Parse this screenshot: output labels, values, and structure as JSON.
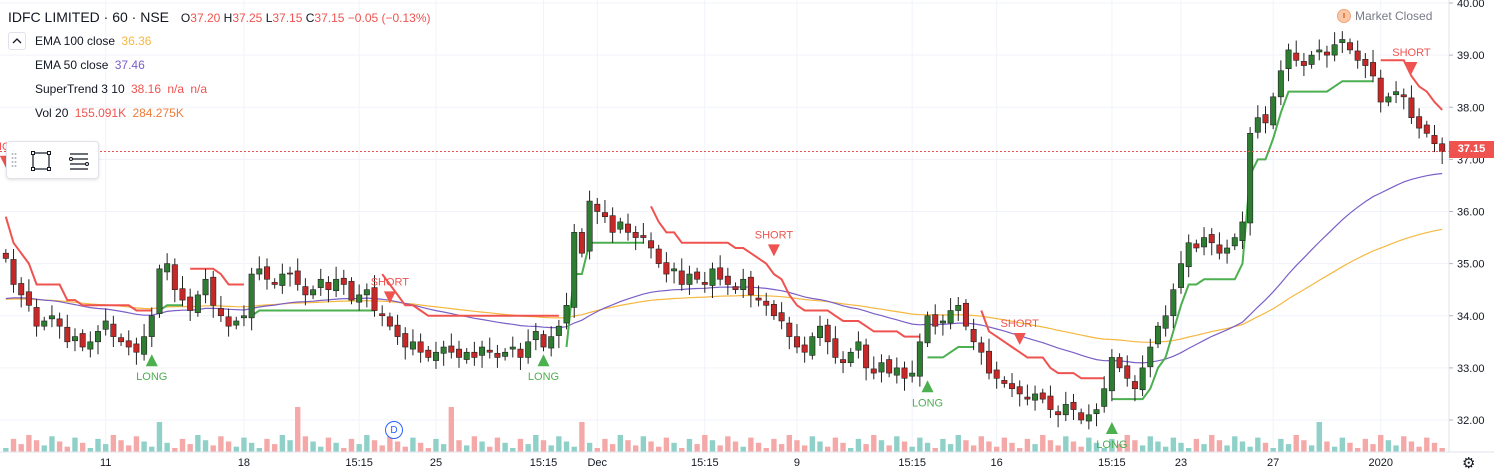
{
  "header": {
    "symbol": "IDFC LIMITED · 60 · NSE",
    "ohlc": {
      "o_label": "O",
      "o": "37.20",
      "h_label": "H",
      "h": "37.25",
      "l_label": "L",
      "l": "37.15",
      "c_label": "C",
      "c": "37.15",
      "change": "−0.05 (−0.13%)"
    }
  },
  "indicators": [
    {
      "name": "EMA 100 close",
      "values": [
        "36.36"
      ],
      "color": "#f5b840"
    },
    {
      "name": "EMA 50 close",
      "values": [
        "37.46"
      ],
      "color": "#7a5fc7"
    },
    {
      "name": "SuperTrend 3 10",
      "values": [
        "38.16",
        "n/a",
        "n/a"
      ],
      "color": "#ef5350"
    },
    {
      "name": "Vol 20",
      "values": [
        "155.091K",
        "284.275K"
      ],
      "color": "#ef7c3a"
    }
  ],
  "market_status": "Market Closed",
  "last_price": "37.15",
  "dividend_marker": "D",
  "colors": {
    "up": "#26a69a",
    "down": "#ef5350",
    "up_candle_body": "#2e7d32",
    "down_candle_body": "#c62828",
    "supertrend_up": "#4caf50",
    "supertrend_down": "#ef5350",
    "ema50": "#7a5fc7",
    "ema100": "#f5b840",
    "vol_up": "#8fd1c9",
    "vol_down": "#f4a9a8",
    "price_line": "#ef5350"
  },
  "chart_data": {
    "type": "candlestick",
    "y_axis": {
      "side": "right",
      "ticks": [
        "40.00",
        "39.00",
        "38.00",
        "37.00",
        "36.00",
        "35.00",
        "34.00",
        "33.00",
        "32.00"
      ],
      "range": [
        31.5,
        40.0
      ]
    },
    "x_axis": {
      "ticks": [
        "11",
        "18",
        "15:15",
        "25",
        "15:15",
        "Dec",
        "15:15",
        "9",
        "15:15",
        "16",
        "15:15",
        "23",
        "27",
        "2020"
      ]
    },
    "last_close": 37.15,
    "signals": [
      {
        "label": "SHORT",
        "type": "short",
        "price": 36.8
      },
      {
        "label": "LONG",
        "type": "long",
        "price": 33.3
      },
      {
        "label": "SHORT",
        "type": "short",
        "price": 34.2
      },
      {
        "label": "LONG",
        "type": "long",
        "price": 33.3
      },
      {
        "label": "SHORT",
        "type": "short",
        "price": 35.1
      },
      {
        "label": "LONG",
        "type": "long",
        "price": 32.8
      },
      {
        "label": "SHORT",
        "type": "short",
        "price": 33.4
      },
      {
        "label": "LONG",
        "type": "long",
        "price": 32.0
      },
      {
        "label": "SHORT",
        "type": "short",
        "price": 38.6
      }
    ],
    "close_series": [
      35.1,
      34.6,
      34.4,
      34.2,
      33.8,
      33.9,
      34.0,
      33.8,
      33.5,
      33.6,
      33.4,
      33.5,
      33.7,
      33.9,
      33.6,
      33.5,
      33.4,
      33.3,
      33.6,
      34.0,
      34.9,
      35.0,
      34.5,
      34.3,
      34.1,
      34.4,
      34.7,
      34.2,
      34.0,
      33.8,
      33.9,
      34.0,
      34.8,
      34.9,
      34.7,
      34.6,
      34.8,
      34.8,
      34.6,
      34.4,
      34.5,
      34.7,
      34.5,
      34.7,
      34.6,
      34.3,
      34.4,
      34.5,
      34.1,
      34.0,
      33.8,
      33.6,
      33.4,
      33.5,
      33.3,
      33.2,
      33.3,
      33.4,
      33.3,
      33.2,
      33.3,
      33.2,
      33.4,
      33.3,
      33.2,
      33.3,
      33.4,
      33.2,
      33.5,
      33.7,
      33.4,
      33.6,
      33.8,
      34.2,
      35.6,
      35.2,
      36.2,
      36.0,
      35.9,
      35.6,
      35.8,
      35.6,
      35.5,
      35.5,
      35.3,
      35.0,
      34.8,
      34.9,
      34.6,
      34.8,
      34.7,
      34.6,
      34.9,
      34.7,
      34.6,
      34.5,
      34.7,
      34.4,
      34.3,
      34.2,
      34.0,
      33.9,
      33.6,
      33.4,
      33.3,
      33.6,
      33.8,
      33.5,
      33.2,
      33.1,
      33.3,
      33.5,
      33.0,
      32.9,
      33.1,
      32.9,
      33.0,
      32.8,
      32.9,
      33.5,
      34.0,
      33.8,
      33.9,
      34.1,
      34.2,
      33.8,
      33.5,
      33.3,
      32.9,
      32.8,
      32.7,
      32.6,
      32.5,
      32.4,
      32.5,
      32.4,
      32.2,
      32.1,
      32.3,
      32.2,
      32.0,
      32.1,
      32.2,
      32.6,
      33.2,
      33.0,
      32.8,
      32.6,
      33.0,
      33.4,
      33.8,
      34.0,
      34.5,
      35.0,
      35.4,
      35.3,
      35.5,
      35.4,
      35.2,
      35.3,
      35.5,
      35.8,
      37.5,
      37.8,
      37.7,
      38.2,
      38.7,
      39.1,
      38.9,
      38.8,
      39.0,
      39.1,
      39.0,
      39.2,
      39.3,
      39.1,
      38.9,
      38.8,
      38.6,
      38.1,
      38.2,
      38.3,
      38.2,
      37.8,
      37.6,
      37.5,
      37.3,
      37.15
    ]
  }
}
